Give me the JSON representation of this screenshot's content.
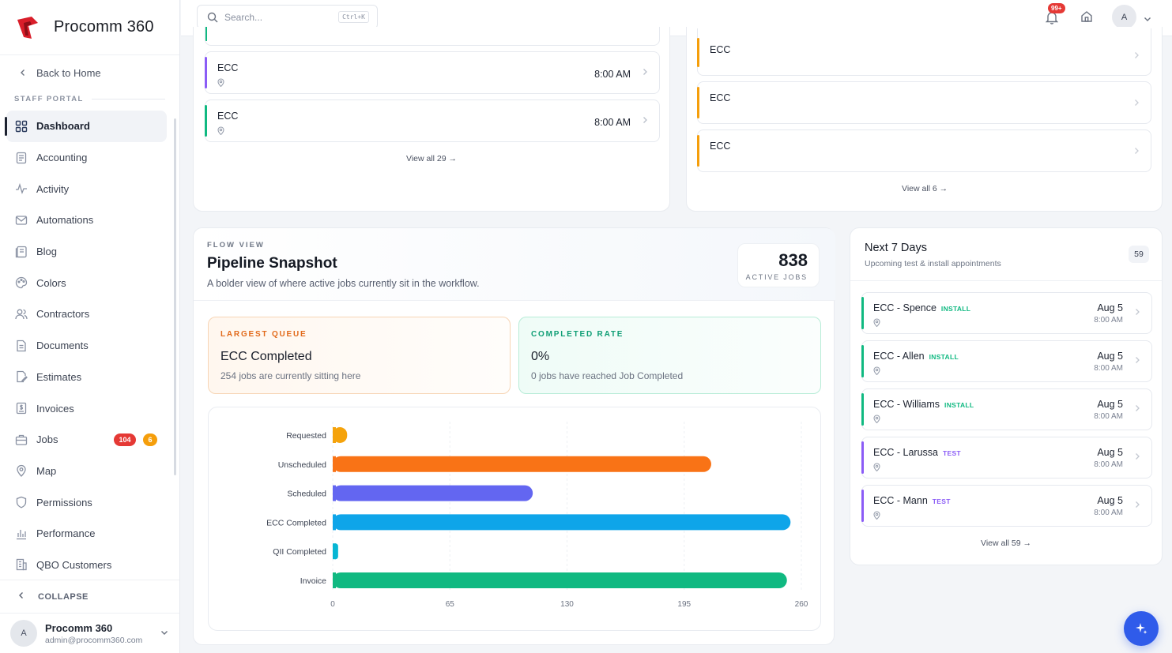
{
  "app": {
    "name": "Procomm 360"
  },
  "sidebar": {
    "back_label": "Back to Home",
    "section_label": "STAFF PORTAL",
    "items": [
      {
        "label": "Dashboard",
        "icon": "dashboard-icon",
        "active": true
      },
      {
        "label": "Accounting",
        "icon": "accounting-icon"
      },
      {
        "label": "Activity",
        "icon": "activity-icon"
      },
      {
        "label": "Automations",
        "icon": "mail-icon"
      },
      {
        "label": "Blog",
        "icon": "blog-icon"
      },
      {
        "label": "Colors",
        "icon": "palette-icon"
      },
      {
        "label": "Contractors",
        "icon": "users-icon"
      },
      {
        "label": "Documents",
        "icon": "document-icon"
      },
      {
        "label": "Estimates",
        "icon": "edit-document-icon"
      },
      {
        "label": "Invoices",
        "icon": "invoice-icon"
      },
      {
        "label": "Jobs",
        "icon": "briefcase-icon",
        "badges": [
          "104",
          "6"
        ]
      },
      {
        "label": "Map",
        "icon": "map-pin-icon"
      },
      {
        "label": "Permissions",
        "icon": "shield-icon"
      },
      {
        "label": "Performance",
        "icon": "bar-chart-icon"
      },
      {
        "label": "QBO Customers",
        "icon": "building-icon"
      }
    ],
    "collapse_label": "COLLAPSE",
    "profile": {
      "initial": "A",
      "name": "Procomm 360",
      "email": "admin@procomm360.com"
    }
  },
  "topbar": {
    "search_placeholder": "Search...",
    "search_shortcut": "Ctrl+K",
    "notif_count": "99+",
    "avatar_initial": "A"
  },
  "jobs_list": {
    "rows": [
      {
        "title": "ECC",
        "time": "8:00 AM",
        "color": "#8b5cf6"
      },
      {
        "title": "ECC",
        "time": "8:00 AM",
        "color": "#10b981"
      }
    ],
    "view_all": "View all 29 →"
  },
  "other_list": {
    "rows": [
      {
        "title": "ECC",
        "color": "#f59e0b"
      },
      {
        "title": "ECC",
        "color": "#f59e0b"
      },
      {
        "title": "ECC",
        "color": "#f59e0b"
      }
    ],
    "view_all": "View all 6 →"
  },
  "pipeline": {
    "eyebrow": "FLOW VIEW",
    "title": "Pipeline Snapshot",
    "subtitle": "A bolder view of where active jobs currently sit in the workflow.",
    "active_count": "838",
    "active_label": "ACTIVE JOBS",
    "largest_queue": {
      "label": "LARGEST QUEUE",
      "value": "ECC Completed",
      "note": "254 jobs are currently sitting here"
    },
    "completed_rate": {
      "label": "COMPLETED RATE",
      "value": "0%",
      "note": "0 jobs have reached Job Completed"
    }
  },
  "chart_data": {
    "type": "bar",
    "orientation": "horizontal",
    "categories": [
      "Requested",
      "Unscheduled",
      "Scheduled",
      "ECC Completed",
      "QII Completed",
      "Invoice"
    ],
    "values": [
      8,
      210,
      111,
      254,
      3,
      252
    ],
    "colors": [
      "#f5a30c",
      "#f97316",
      "#6366f1",
      "#0ea5e9",
      "#06b6d4",
      "#10b981"
    ],
    "xticks": [
      "0",
      "65",
      "130",
      "195",
      "260"
    ],
    "xlim": [
      0,
      260
    ],
    "grid": true
  },
  "next7": {
    "title": "Next 7 Days",
    "subtitle": "Upcoming test & install appointments",
    "count": "59",
    "items": [
      {
        "name": "ECC - Spence",
        "tag": "INSTALL",
        "date": "Aug 5",
        "time": "8:00 AM",
        "color": "#10b981",
        "tag_color": "#10b981"
      },
      {
        "name": "ECC - Allen",
        "tag": "INSTALL",
        "date": "Aug 5",
        "time": "8:00 AM",
        "color": "#10b981",
        "tag_color": "#10b981"
      },
      {
        "name": "ECC - Williams",
        "tag": "INSTALL",
        "date": "Aug 5",
        "time": "8:00 AM",
        "color": "#10b981",
        "tag_color": "#10b981"
      },
      {
        "name": "ECC - Larussa",
        "tag": "TEST",
        "date": "Aug 5",
        "time": "8:00 AM",
        "color": "#8b5cf6",
        "tag_color": "#8b5cf6"
      },
      {
        "name": "ECC - Mann",
        "tag": "TEST",
        "date": "Aug 5",
        "time": "8:00 AM",
        "color": "#8b5cf6",
        "tag_color": "#8b5cf6"
      }
    ],
    "view_all": "View all 59 →"
  }
}
